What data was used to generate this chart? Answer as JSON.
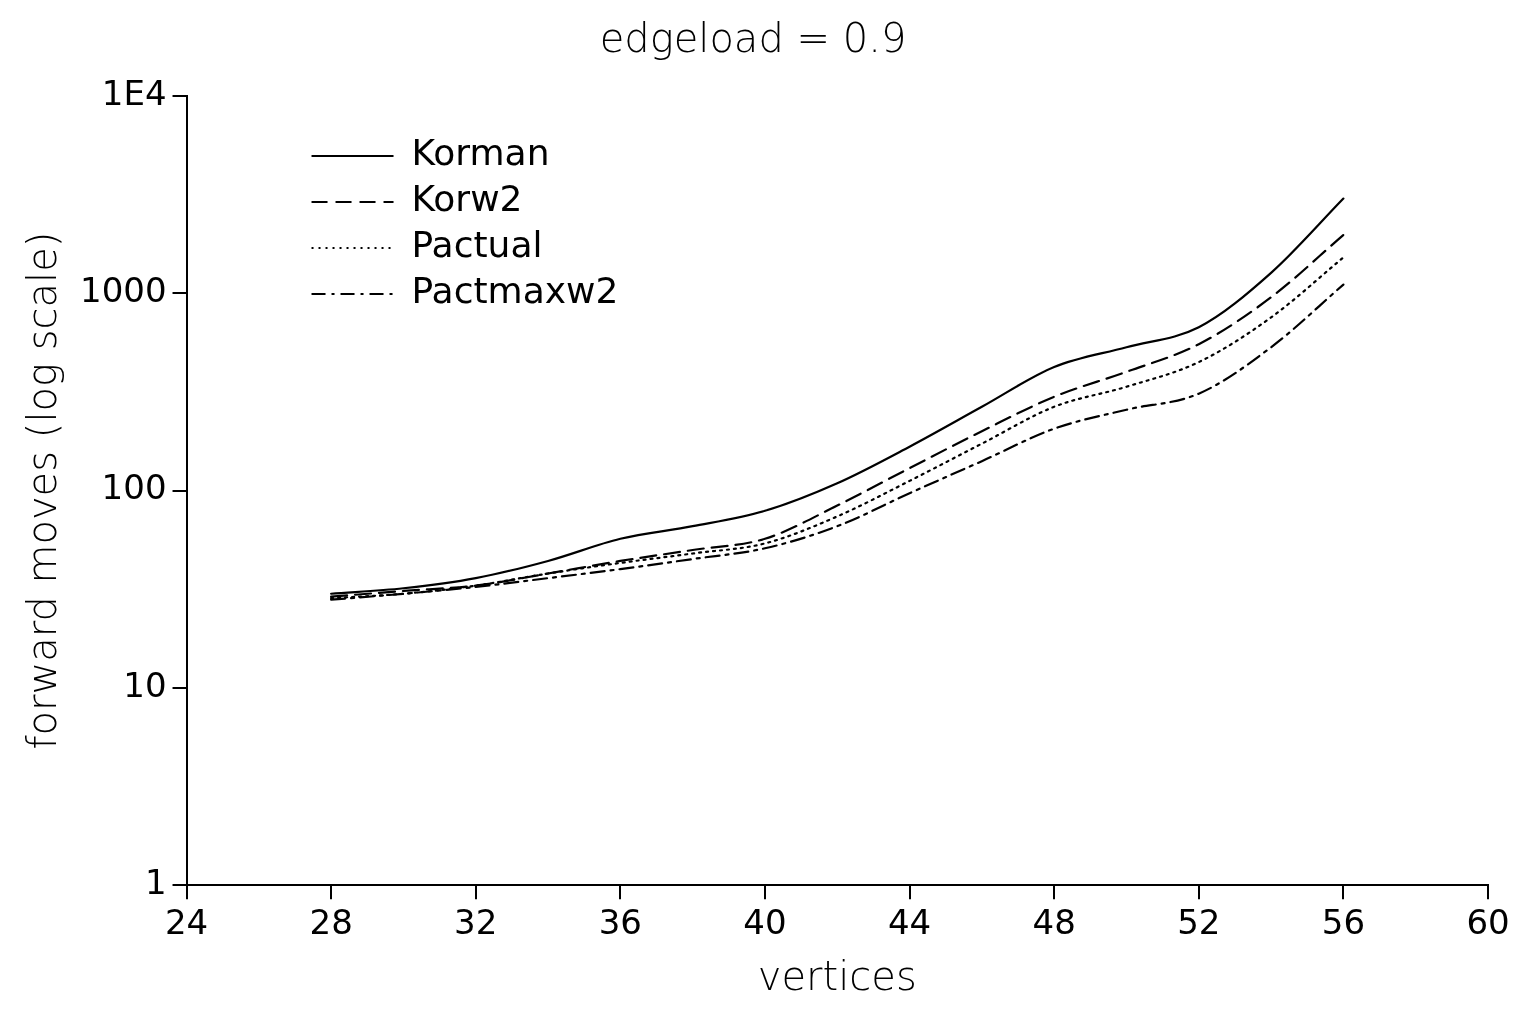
{
  "chart_data": {
    "type": "line",
    "title": "edgeload = 0.9",
    "xlabel": "vertices",
    "ylabel": "forward moves (log scale)",
    "x": [
      28,
      30,
      32,
      34,
      36,
      38,
      40,
      42,
      44,
      46,
      48,
      50,
      52,
      54,
      56
    ],
    "series": [
      {
        "name": "Korman",
        "color": "#000000",
        "line_style": "solid",
        "values": [
          30,
          32,
          36,
          44,
          57,
          66,
          79,
          109,
          167,
          266,
          423,
          533,
          673,
          1270,
          3020
        ]
      },
      {
        "name": "Korw2",
        "color": "#000000",
        "line_style": "dashed",
        "values": [
          29,
          31,
          33,
          38,
          44,
          50,
          57,
          84,
          130,
          200,
          299,
          400,
          552,
          955,
          1976
        ]
      },
      {
        "name": "Pactual",
        "color": "#000000",
        "line_style": "dotted",
        "values": [
          28.5,
          30,
          33,
          38,
          43,
          48,
          54,
          74,
          112,
          173,
          266,
          336,
          448,
          755,
          1520
        ]
      },
      {
        "name": "Pactmaxw2",
        "color": "#000000",
        "line_style": "dashdot",
        "values": [
          28,
          30,
          32.5,
          36,
          40,
          45,
          51,
          66,
          97,
          141,
          206,
          257,
          310,
          533,
          1107
        ]
      }
    ],
    "log": "y",
    "xlim": [
      24,
      60
    ],
    "xticks": [
      24,
      28,
      32,
      36,
      40,
      44,
      48,
      52,
      56,
      60
    ],
    "ylim": [
      1,
      10000
    ],
    "yticks": [
      1,
      10,
      100,
      1000,
      {
        "value": 10000,
        "label": "1E4"
      }
    ],
    "grid": false,
    "legend": "top left",
    "marker": "none"
  }
}
